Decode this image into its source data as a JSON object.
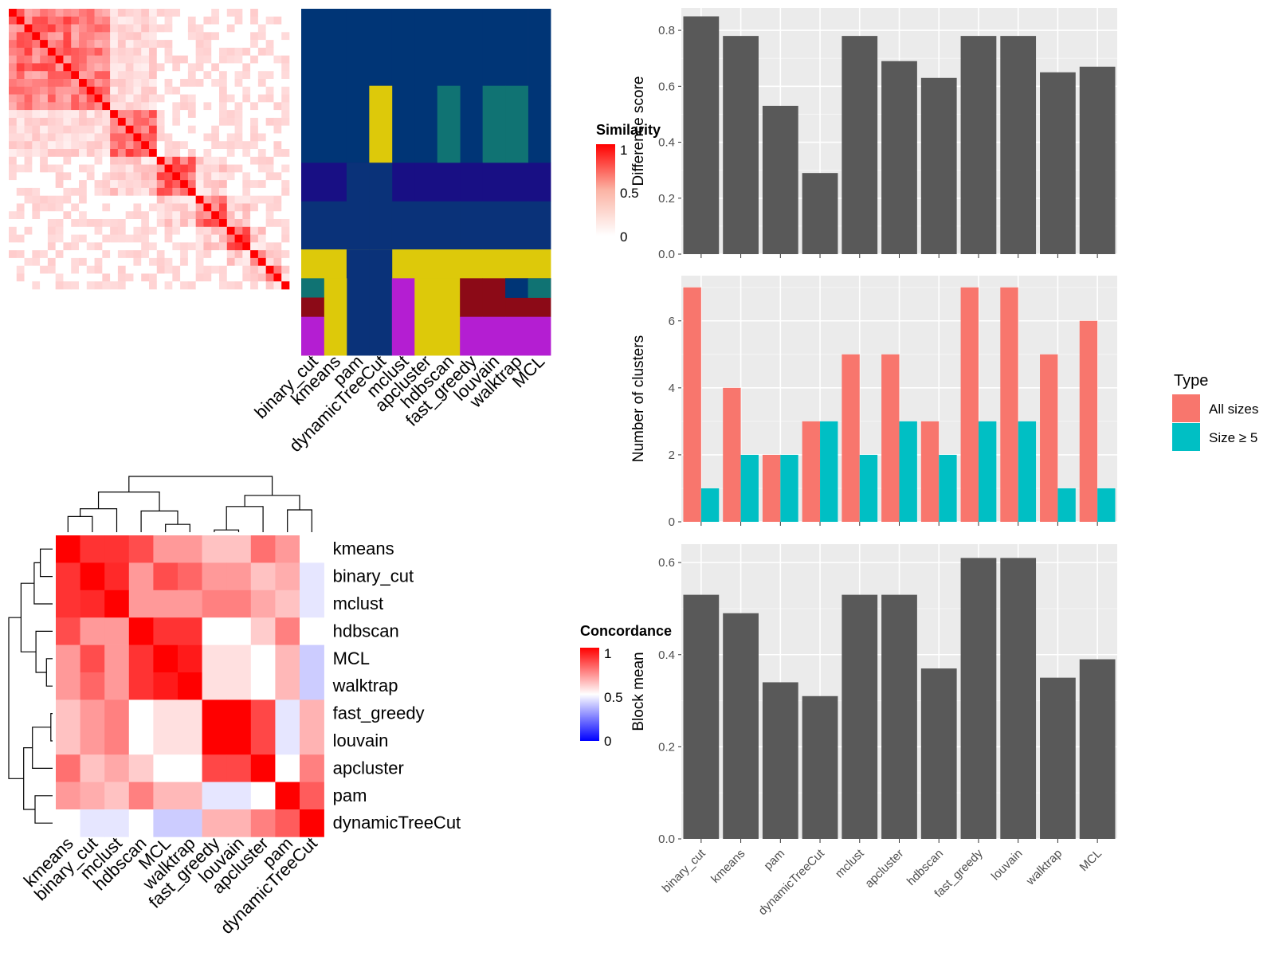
{
  "methods_order": [
    "binary_cut",
    "kmeans",
    "pam",
    "dynamicTreeCut",
    "mclust",
    "apcluster",
    "hdbscan",
    "fast_greedy",
    "louvain",
    "walktrap",
    "MCL"
  ],
  "similarity_legend": {
    "title": "Similarity",
    "ticks": [
      "1",
      "0.5",
      "0"
    ]
  },
  "concordance_legend": {
    "title": "Concordance",
    "ticks": [
      "1",
      "0.5",
      "0"
    ]
  },
  "colors": {
    "bar": "#595959",
    "panel": "#ebebeb",
    "grid": "#ffffff",
    "all_sizes": "#f8766d",
    "size5": "#00bfc4",
    "class_colors": [
      "#003576",
      "#0a3279",
      "#0d3f7b",
      "#180f84",
      "#ddc90a",
      "#107373",
      "#8c0a17",
      "#b41ed2"
    ]
  },
  "chart_data": [
    {
      "type": "heatmap",
      "name": "similarity_matrix",
      "note_values": "similarity 0..1 between 36 terms, diagonal = 1",
      "n": 36,
      "block_starts": [
        0,
        8,
        13,
        19,
        24,
        28,
        31,
        33,
        35
      ],
      "legend_range": [
        0,
        1
      ]
    },
    {
      "type": "heatmap",
      "name": "cluster_assignment",
      "columns": [
        "binary_cut",
        "kmeans",
        "pam",
        "dynamicTreeCut",
        "mclust",
        "apcluster",
        "hdbscan",
        "fast_greedy",
        "louvain",
        "walktrap",
        "MCL"
      ],
      "rows": 36,
      "bands": [
        {
          "rows": [
            0,
            8
          ],
          "cols": [
            "all"
          ],
          "cls": 0
        },
        {
          "rows": [
            8,
            16
          ],
          "cols": [
            "all"
          ],
          "cls": 0
        },
        {
          "rows": [
            8,
            16
          ],
          "cols": [
            "dynamicTreeCut"
          ],
          "cls": 4
        },
        {
          "rows": [
            8,
            16
          ],
          "cols": [
            "hdbscan"
          ],
          "cls": 5
        },
        {
          "rows": [
            8,
            16
          ],
          "cols": [
            "louvain",
            "walktrap"
          ],
          "cls": 5
        },
        {
          "rows": [
            16,
            20
          ],
          "cols": [
            "all"
          ],
          "cls": 3
        },
        {
          "rows": [
            16,
            20
          ],
          "cols": [
            "pam",
            "dynamicTreeCut"
          ],
          "cls": 1
        },
        {
          "rows": [
            20,
            25
          ],
          "cols": [
            "all"
          ],
          "cls": 1
        },
        {
          "rows": [
            25,
            28
          ],
          "cols": [
            "all"
          ],
          "cls": 4
        },
        {
          "rows": [
            25,
            36
          ],
          "cols": [
            "pam",
            "dynamicTreeCut"
          ],
          "cls": 1
        },
        {
          "rows": [
            28,
            36
          ],
          "cols": [
            "binary_cut",
            "kmeans"
          ],
          "cls": 4
        },
        {
          "rows": [
            28,
            30
          ],
          "cols": [
            "binary_cut"
          ],
          "cls": 5
        },
        {
          "rows": [
            30,
            32
          ],
          "cols": [
            "binary_cut"
          ],
          "cls": 6
        },
        {
          "rows": [
            32,
            36
          ],
          "cols": [
            "binary_cut"
          ],
          "cls": 7
        },
        {
          "rows": [
            28,
            36
          ],
          "cols": [
            "mclust"
          ],
          "cls": 7
        },
        {
          "rows": [
            28,
            36
          ],
          "cols": [
            "apcluster",
            "hdbscan"
          ],
          "cls": 4
        },
        {
          "rows": [
            28,
            32
          ],
          "cols": [
            "fast_greedy",
            "louvain",
            "walktrap",
            "MCL"
          ],
          "cls": 6
        },
        {
          "rows": [
            32,
            36
          ],
          "cols": [
            "fast_greedy",
            "louvain",
            "walktrap",
            "MCL"
          ],
          "cls": 7
        },
        {
          "rows": [
            28,
            30
          ],
          "cols": [
            "walktrap"
          ],
          "cls": 0
        },
        {
          "rows": [
            28,
            30
          ],
          "cols": [
            "MCL"
          ],
          "cls": 5
        }
      ]
    },
    {
      "type": "heatmap",
      "name": "concordance_matrix",
      "labels": [
        "kmeans",
        "binary_cut",
        "mclust",
        "hdbscan",
        "MCL",
        "walktrap",
        "fast_greedy",
        "louvain",
        "apcluster",
        "pam",
        "dynamicTreeCut"
      ],
      "values": [
        [
          1.0,
          0.9,
          0.9,
          0.85,
          0.7,
          0.7,
          0.62,
          0.62,
          0.78,
          0.7,
          0.5
        ],
        [
          0.9,
          1.0,
          0.92,
          0.7,
          0.85,
          0.8,
          0.7,
          0.7,
          0.62,
          0.66,
          0.45
        ],
        [
          0.9,
          0.92,
          1.0,
          0.7,
          0.7,
          0.7,
          0.75,
          0.75,
          0.67,
          0.62,
          0.45
        ],
        [
          0.85,
          0.7,
          0.7,
          1.0,
          0.9,
          0.9,
          0.5,
          0.5,
          0.6,
          0.75,
          0.5
        ],
        [
          0.7,
          0.85,
          0.7,
          0.9,
          1.0,
          0.95,
          0.56,
          0.56,
          0.5,
          0.64,
          0.4
        ],
        [
          0.7,
          0.8,
          0.7,
          0.9,
          0.95,
          1.0,
          0.56,
          0.56,
          0.5,
          0.64,
          0.4
        ],
        [
          0.62,
          0.7,
          0.75,
          0.5,
          0.56,
          0.56,
          1.0,
          1.0,
          0.86,
          0.45,
          0.65
        ],
        [
          0.62,
          0.7,
          0.75,
          0.5,
          0.56,
          0.56,
          1.0,
          1.0,
          0.86,
          0.45,
          0.65
        ],
        [
          0.78,
          0.62,
          0.67,
          0.6,
          0.5,
          0.5,
          0.86,
          0.86,
          1.0,
          0.5,
          0.75
        ],
        [
          0.7,
          0.66,
          0.62,
          0.75,
          0.64,
          0.64,
          0.45,
          0.45,
          0.5,
          1.0,
          0.82
        ],
        [
          0.5,
          0.45,
          0.45,
          0.5,
          0.4,
          0.4,
          0.65,
          0.65,
          0.75,
          0.82,
          1.0
        ]
      ],
      "legend_range": [
        0,
        1
      ]
    },
    {
      "type": "bar",
      "name": "difference_score",
      "categories": [
        "binary_cut",
        "kmeans",
        "pam",
        "dynamicTreeCut",
        "mclust",
        "apcluster",
        "hdbscan",
        "fast_greedy",
        "louvain",
        "walktrap",
        "MCL"
      ],
      "values": [
        0.85,
        0.78,
        0.53,
        0.29,
        0.78,
        0.69,
        0.63,
        0.78,
        0.78,
        0.65,
        0.67
      ],
      "ylabel": "Difference score",
      "ylim": [
        0,
        0.88
      ],
      "yticks": [
        "0.0",
        "0.2",
        "0.4",
        "0.6",
        "0.8"
      ],
      "ytick_values": [
        0,
        0.2,
        0.4,
        0.6,
        0.8
      ]
    },
    {
      "type": "bar",
      "name": "number_of_clusters",
      "categories": [
        "binary_cut",
        "kmeans",
        "pam",
        "dynamicTreeCut",
        "mclust",
        "apcluster",
        "hdbscan",
        "fast_greedy",
        "louvain",
        "walktrap",
        "MCL"
      ],
      "series": [
        {
          "name": "All sizes",
          "values": [
            7,
            4,
            2,
            3,
            5,
            5,
            3,
            7,
            7,
            5,
            6
          ]
        },
        {
          "name": "Size ≥ 5",
          "values": [
            1,
            2,
            2,
            3,
            2,
            3,
            2,
            3,
            3,
            1,
            1
          ]
        }
      ],
      "ylabel": "Number of clusters",
      "ylim": [
        0,
        7.35
      ],
      "yticks": [
        "0",
        "2",
        "4",
        "6"
      ],
      "ytick_values": [
        0,
        2,
        4,
        6
      ],
      "legend": {
        "title": "Type",
        "placement": "right"
      }
    },
    {
      "type": "bar",
      "name": "block_mean",
      "categories": [
        "binary_cut",
        "kmeans",
        "pam",
        "dynamicTreeCut",
        "mclust",
        "apcluster",
        "hdbscan",
        "fast_greedy",
        "louvain",
        "walktrap",
        "MCL"
      ],
      "values": [
        0.53,
        0.49,
        0.34,
        0.31,
        0.53,
        0.53,
        0.37,
        0.61,
        0.61,
        0.35,
        0.39
      ],
      "ylabel": "Block mean",
      "ylim": [
        0,
        0.64
      ],
      "yticks": [
        "0.0",
        "0.2",
        "0.4",
        "0.6"
      ],
      "ytick_values": [
        0,
        0.2,
        0.4,
        0.6
      ]
    }
  ]
}
